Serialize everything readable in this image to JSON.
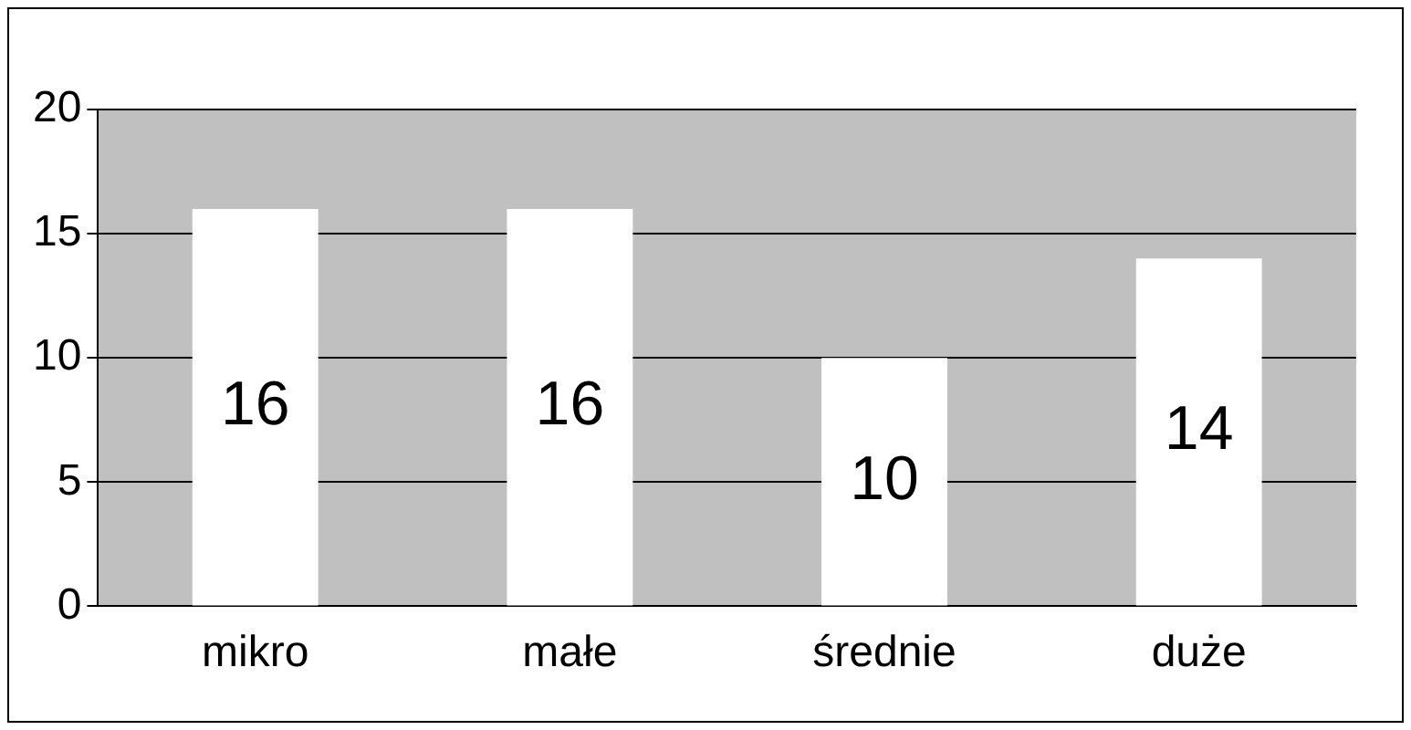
{
  "chart_data": {
    "type": "bar",
    "categories": [
      "mikro",
      "małe",
      "średnie",
      "duże"
    ],
    "values": [
      16,
      16,
      10,
      14
    ],
    "color": "#ffffff",
    "ylim": [
      0,
      20
    ],
    "yticks": [
      0,
      5,
      10,
      15,
      20
    ],
    "grid": "y",
    "data_labels": true,
    "legend": false
  }
}
